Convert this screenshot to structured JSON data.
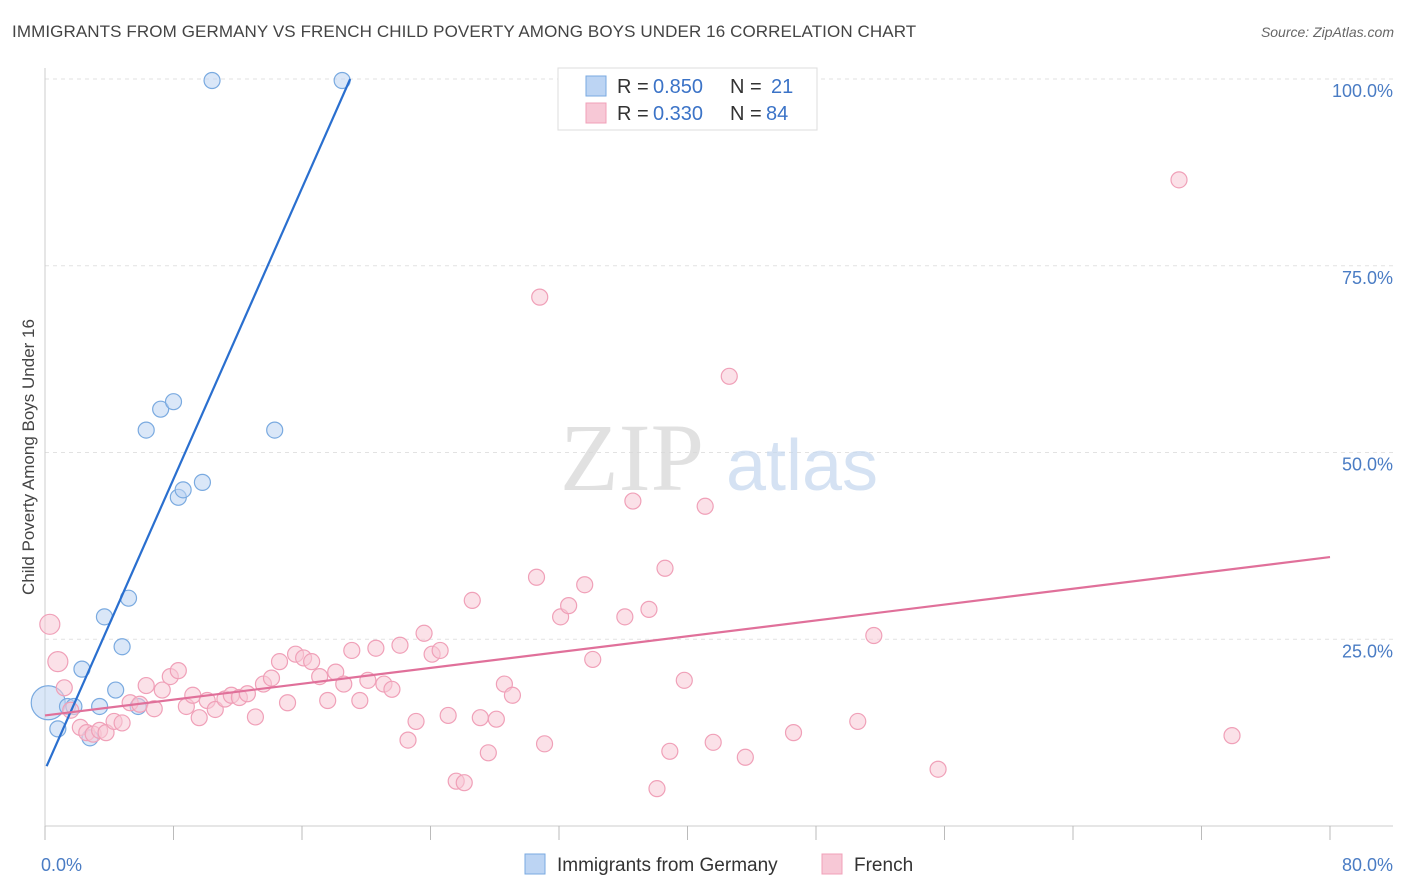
{
  "chart_data": {
    "type": "scatter",
    "title": "IMMIGRANTS FROM GERMANY VS FRENCH CHILD POVERTY AMONG BOYS UNDER 16 CORRELATION CHART",
    "source": "Source: ZipAtlas.com",
    "xlabel": "",
    "ylabel": "Child Poverty Among Boys Under 16",
    "xlim": [
      0,
      80
    ],
    "ylim": [
      0,
      104
    ],
    "x_tick_labels": [
      {
        "value": 0,
        "label": "0.0%"
      },
      {
        "value": 80,
        "label": "80.0%"
      }
    ],
    "y_tick_labels": [
      {
        "value": 25,
        "label": "25.0%"
      },
      {
        "value": 50,
        "label": "50.0%"
      },
      {
        "value": 75,
        "label": "75.0%"
      },
      {
        "value": 100,
        "label": "100.0%"
      }
    ],
    "watermark": {
      "zip": "ZIP",
      "atlas": "atlas"
    },
    "legend": [
      {
        "r_label": "R =",
        "r_value": "0.850",
        "n_label": "N =",
        "n_value": "21"
      },
      {
        "r_label": "R =",
        "r_value": "0.330",
        "n_label": "N =",
        "n_value": "84"
      }
    ],
    "series": [
      {
        "name": "Immigrants from Germany",
        "color": "#7aaae0",
        "fill": "#bcd4f3",
        "trend_color": "#2a6fcf",
        "trend": [
          [
            0.1,
            8
          ],
          [
            19,
            100
          ]
        ],
        "points": [
          [
            10.4,
            99.8
          ],
          [
            18.5,
            99.8
          ],
          [
            0.2,
            16.5
          ],
          [
            0.8,
            13
          ],
          [
            1.4,
            16
          ],
          [
            1.8,
            16
          ],
          [
            2.3,
            21
          ],
          [
            3.4,
            16
          ],
          [
            3.7,
            28
          ],
          [
            4.4,
            18.2
          ],
          [
            4.8,
            24
          ],
          [
            5.2,
            30.5
          ],
          [
            5.8,
            16
          ],
          [
            6.3,
            53
          ],
          [
            7.2,
            55.8
          ],
          [
            8,
            56.8
          ],
          [
            8.3,
            44
          ],
          [
            8.6,
            45
          ],
          [
            9.8,
            46
          ],
          [
            14.3,
            53
          ],
          [
            2.8,
            11.8
          ]
        ],
        "point_sizes": [
          1,
          1,
          3,
          1,
          1,
          1,
          1,
          1,
          1,
          1,
          1,
          1,
          1,
          1,
          1,
          1,
          1,
          1,
          1,
          1,
          1
        ]
      },
      {
        "name": "French",
        "color": "#f0a0b8",
        "fill": "#f7c8d6",
        "trend_color": "#e0709a",
        "trend": [
          [
            0,
            14.8
          ],
          [
            80,
            36
          ]
        ],
        "points": [
          [
            0.3,
            27
          ],
          [
            0.8,
            22
          ],
          [
            1.2,
            18.5
          ],
          [
            1.6,
            15.5
          ],
          [
            2.2,
            13.2
          ],
          [
            2.6,
            12.5
          ],
          [
            3,
            12.3
          ],
          [
            3.4,
            12.8
          ],
          [
            3.8,
            12.5
          ],
          [
            4.3,
            14
          ],
          [
            4.8,
            13.8
          ],
          [
            5.3,
            16.5
          ],
          [
            5.9,
            16.3
          ],
          [
            6.3,
            18.8
          ],
          [
            6.8,
            15.7
          ],
          [
            7.3,
            18.2
          ],
          [
            7.8,
            20
          ],
          [
            8.3,
            20.8
          ],
          [
            8.8,
            16
          ],
          [
            9.2,
            17.5
          ],
          [
            9.6,
            14.5
          ],
          [
            10.1,
            16.8
          ],
          [
            10.6,
            15.6
          ],
          [
            11.2,
            17
          ],
          [
            11.6,
            17.5
          ],
          [
            12.1,
            17.2
          ],
          [
            12.6,
            17.7
          ],
          [
            13.1,
            14.6
          ],
          [
            13.6,
            19
          ],
          [
            14.1,
            19.8
          ],
          [
            14.6,
            22
          ],
          [
            15.1,
            16.5
          ],
          [
            15.6,
            23
          ],
          [
            16.1,
            22.5
          ],
          [
            16.6,
            22
          ],
          [
            17.1,
            20
          ],
          [
            17.6,
            16.8
          ],
          [
            18.1,
            20.6
          ],
          [
            18.6,
            19
          ],
          [
            19.1,
            23.5
          ],
          [
            19.6,
            16.8
          ],
          [
            20.1,
            19.5
          ],
          [
            20.6,
            23.8
          ],
          [
            21.1,
            19
          ],
          [
            21.6,
            18.3
          ],
          [
            22.1,
            24.2
          ],
          [
            22.6,
            11.5
          ],
          [
            23.1,
            14
          ],
          [
            23.6,
            25.8
          ],
          [
            24.1,
            23
          ],
          [
            24.6,
            23.5
          ],
          [
            25.1,
            14.8
          ],
          [
            25.6,
            6
          ],
          [
            26.1,
            5.8
          ],
          [
            26.6,
            30.2
          ],
          [
            27.1,
            14.5
          ],
          [
            27.6,
            9.8
          ],
          [
            28.1,
            14.3
          ],
          [
            28.6,
            19
          ],
          [
            29.1,
            17.5
          ],
          [
            30.6,
            33.3
          ],
          [
            31.1,
            11
          ],
          [
            30.8,
            70.8
          ],
          [
            32.1,
            28
          ],
          [
            32.6,
            29.5
          ],
          [
            33.6,
            32.3
          ],
          [
            34.1,
            22.3
          ],
          [
            36.1,
            28
          ],
          [
            36.6,
            43.5
          ],
          [
            37.6,
            29
          ],
          [
            38.1,
            5
          ],
          [
            38.6,
            34.5
          ],
          [
            38.9,
            10
          ],
          [
            39.8,
            19.5
          ],
          [
            41.1,
            42.8
          ],
          [
            41.6,
            11.2
          ],
          [
            42.6,
            60.2
          ],
          [
            43.6,
            9.2
          ],
          [
            46.6,
            12.5
          ],
          [
            50.6,
            14
          ],
          [
            51.6,
            25.5
          ],
          [
            55.6,
            7.6
          ],
          [
            70.6,
            86.5
          ],
          [
            73.9,
            12.1
          ]
        ]
      }
    ],
    "bottom_legend": [
      {
        "label": "Immigrants from Germany"
      },
      {
        "label": "French"
      }
    ]
  }
}
